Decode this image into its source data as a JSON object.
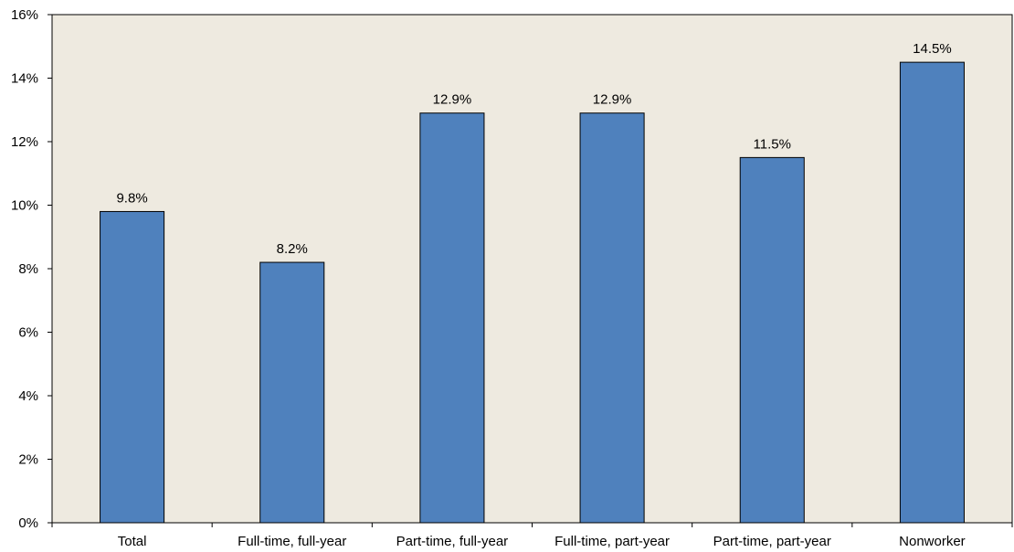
{
  "chart_data": {
    "type": "bar",
    "title": "",
    "xlabel": "",
    "ylabel": "",
    "categories": [
      "Total",
      "Full-time, full-year",
      "Part-time, full-year",
      "Full-time, part-year",
      "Part-time, part-year",
      "Nonworker"
    ],
    "values": [
      9.8,
      8.2,
      12.9,
      12.9,
      11.5,
      14.5
    ],
    "data_labels": [
      "9.8%",
      "8.2%",
      "12.9%",
      "12.9%",
      "11.5%",
      "14.5%"
    ],
    "ylim": [
      0,
      16
    ],
    "y_ticks": [
      0,
      2,
      4,
      6,
      8,
      10,
      12,
      14,
      16
    ],
    "y_tick_labels": [
      "0%",
      "2%",
      "4%",
      "6%",
      "8%",
      "10%",
      "12%",
      "14%",
      "16%"
    ],
    "grid": false,
    "legend": "none",
    "colors": {
      "bar_fill": "#4f81bd",
      "plot_background": "#eeeae0",
      "bar_outline": "#000000"
    }
  }
}
